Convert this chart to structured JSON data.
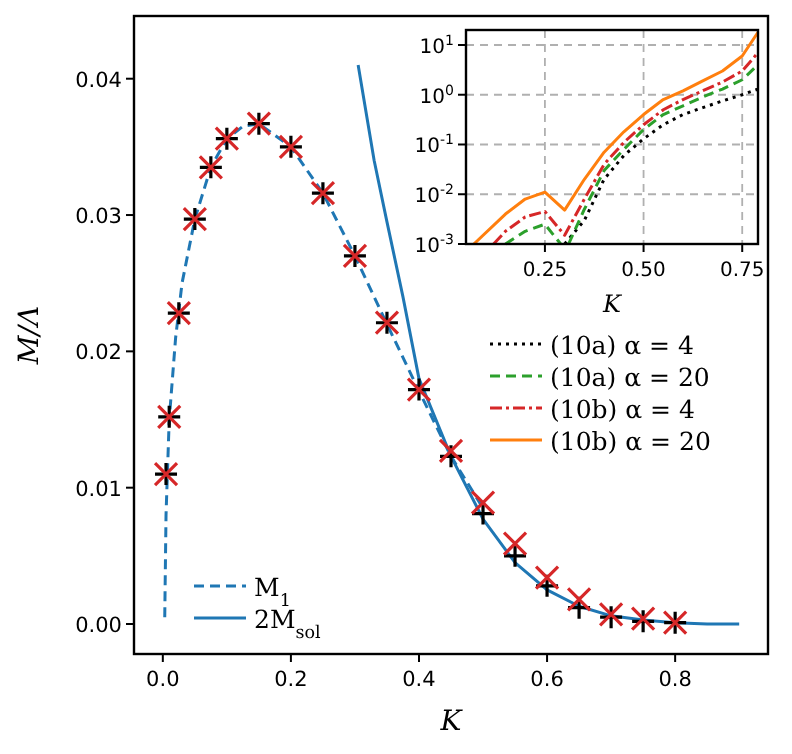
{
  "chart_data": [
    {
      "type": "line",
      "xlabel": "K",
      "ylabel": "M/Λ",
      "xlim": [
        -0.045,
        0.945
      ],
      "xticks": [
        {
          "value": 0,
          "label": "0.0"
        },
        {
          "value": 0.2,
          "label": "0.2"
        },
        {
          "value": 0.4,
          "label": "0.4"
        },
        {
          "value": 0.6,
          "label": "0.6"
        },
        {
          "value": 0.8,
          "label": "0.8"
        }
      ],
      "ylim": [
        -0.0022,
        0.0446
      ],
      "yticks": [
        {
          "value": 0,
          "label": "0.00"
        },
        {
          "value": 0.01,
          "label": "0.01"
        },
        {
          "value": 0.02,
          "label": "0.02"
        },
        {
          "value": 0.03,
          "label": "0.03"
        },
        {
          "value": 0.04,
          "label": "0.04"
        }
      ],
      "legend": "bottom left",
      "series": [
        {
          "name": "M$_{1}$",
          "type": "line",
          "color": "#1f77b4",
          "line_style": "dashed",
          "x": [
            0.003,
            0.005,
            0.01,
            0.02,
            0.03,
            0.05,
            0.075,
            0.1,
            0.125,
            0.15,
            0.2,
            0.25,
            0.3,
            0.35,
            0.4,
            0.45,
            0.5
          ],
          "values": [
            0.0005,
            0.008,
            0.015,
            0.021,
            0.025,
            0.0297,
            0.0335,
            0.0356,
            0.0365,
            0.0367,
            0.035,
            0.0316,
            0.027,
            0.022,
            0.0171,
            0.0123,
            0.0085
          ]
        },
        {
          "name": "2M$_{sol}$",
          "type": "line",
          "color": "#1f77b4",
          "line_style": "solid",
          "x": [
            0.305,
            0.33,
            0.35,
            0.375,
            0.4,
            0.45,
            0.5,
            0.55,
            0.6,
            0.65,
            0.7,
            0.75,
            0.8,
            0.85,
            0.9
          ],
          "values": [
            0.041,
            0.034,
            0.0295,
            0.024,
            0.018,
            0.0123,
            0.0077,
            0.0045,
            0.0025,
            0.0013,
            0.0006,
            0.0003,
            0.0001,
            0.0,
            0.0
          ]
        },
        {
          "type": "scatter",
          "color": "#000000",
          "marker": "plus",
          "x": [
            0.005,
            0.01,
            0.025,
            0.05,
            0.075,
            0.1,
            0.15,
            0.2,
            0.25,
            0.3,
            0.35,
            0.4,
            0.45,
            0.5,
            0.55,
            0.6,
            0.65,
            0.7,
            0.75,
            0.8
          ],
          "values": [
            0.011,
            0.0152,
            0.0228,
            0.0297,
            0.0335,
            0.0356,
            0.0367,
            0.035,
            0.0316,
            0.027,
            0.0221,
            0.0172,
            0.0123,
            0.0081,
            0.005,
            0.0028,
            0.0012,
            0.0005,
            0.0002,
            0.0001
          ]
        },
        {
          "type": "scatter",
          "color": "#d62728",
          "marker": "cross",
          "x": [
            0.005,
            0.01,
            0.025,
            0.05,
            0.075,
            0.1,
            0.15,
            0.2,
            0.25,
            0.3,
            0.35,
            0.4,
            0.45,
            0.5,
            0.55,
            0.6,
            0.65,
            0.7,
            0.75,
            0.8
          ],
          "values": [
            0.011,
            0.0152,
            0.0228,
            0.0297,
            0.0335,
            0.0356,
            0.0367,
            0.035,
            0.0316,
            0.027,
            0.0221,
            0.0172,
            0.0127,
            0.0089,
            0.0059,
            0.0034,
            0.0018,
            0.0007,
            0.0004,
            0.0001
          ]
        }
      ]
    },
    {
      "type": "line",
      "xlabel": "K",
      "xlim": [
        0.05,
        0.79
      ],
      "xticks": [
        {
          "value": 0.25,
          "label": "0.25"
        },
        {
          "value": 0.5,
          "label": "0.50"
        },
        {
          "value": 0.75,
          "label": "0.75"
        }
      ],
      "ylim": [
        0.001,
        20
      ],
      "log": true,
      "grid": true,
      "legend": "bottom",
      "yticks": [
        {
          "value": 0.001,
          "label": "10$^{-3}$"
        },
        {
          "value": 0.01,
          "label": "10$^{-2}$"
        },
        {
          "value": 0.1,
          "label": "10$^{-1}$"
        },
        {
          "value": 1,
          "label": "10$^{0}$"
        },
        {
          "value": 10,
          "label": "10$^{1}$"
        }
      ],
      "series": [
        {
          "name": "(10a) α = 4",
          "color": "#000000",
          "line_style": "dotted",
          "x": [
            0.3,
            0.35,
            0.4,
            0.45,
            0.5,
            0.55,
            0.6,
            0.65,
            0.7,
            0.75,
            0.79
          ],
          "values": [
            0.001,
            0.003,
            0.02,
            0.06,
            0.13,
            0.25,
            0.4,
            0.55,
            0.75,
            1.0,
            1.3
          ]
        },
        {
          "name": "(10a) α = 20",
          "color": "#2ca02c",
          "line_style": "dashed",
          "x": [
            0.15,
            0.2,
            0.25,
            0.29,
            0.3,
            0.31,
            0.35,
            0.4,
            0.45,
            0.5,
            0.55,
            0.6,
            0.65,
            0.7,
            0.75,
            0.79
          ],
          "values": [
            0.001,
            0.0018,
            0.0025,
            0.001,
            null,
            0.001,
            0.005,
            0.03,
            0.08,
            0.2,
            0.4,
            0.6,
            0.9,
            1.3,
            2,
            4
          ]
        },
        {
          "name": "(10b) α = 4",
          "color": "#d62728",
          "line_style": "dashdot",
          "x": [
            0.12,
            0.15,
            0.2,
            0.25,
            0.3,
            0.35,
            0.4,
            0.45,
            0.5,
            0.55,
            0.6,
            0.65,
            0.7,
            0.75,
            0.79
          ],
          "values": [
            0.001,
            0.0018,
            0.0035,
            0.0045,
            0.0015,
            0.008,
            0.04,
            0.11,
            0.25,
            0.5,
            0.8,
            1.2,
            1.8,
            3,
            7
          ]
        },
        {
          "name": "(10b) α = 20",
          "color": "#ff7f0e",
          "line_style": "solid",
          "x": [
            0.07,
            0.15,
            0.2,
            0.25,
            0.3,
            0.35,
            0.4,
            0.45,
            0.5,
            0.55,
            0.6,
            0.65,
            0.7,
            0.75,
            0.79
          ],
          "values": [
            0.001,
            0.004,
            0.008,
            0.011,
            0.0048,
            0.02,
            0.07,
            0.18,
            0.4,
            0.8,
            1.2,
            1.9,
            3,
            6,
            18
          ]
        }
      ]
    }
  ]
}
